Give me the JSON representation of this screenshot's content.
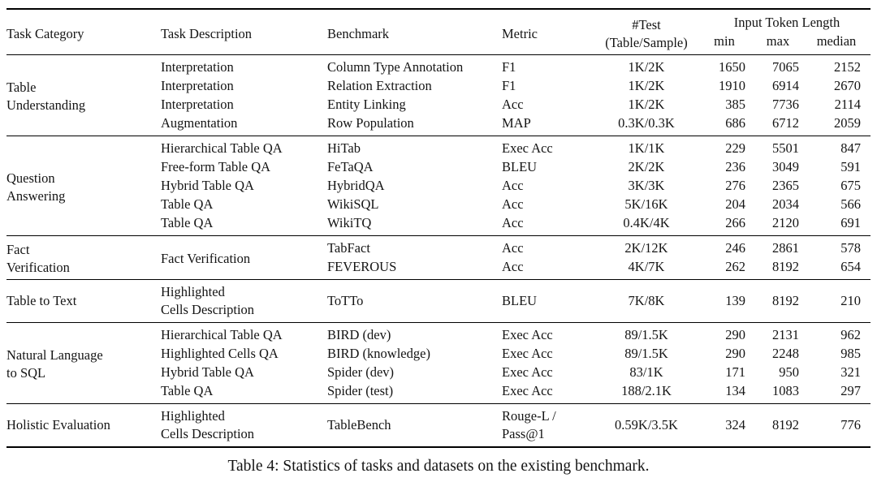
{
  "colors": {
    "background": "#ffffff",
    "text": "#141414",
    "rule": "#000000"
  },
  "caption": "Table 4: Statistics of tasks and datasets on the existing benchmark.",
  "table": {
    "header": {
      "task_category": "Task Category",
      "task_description": "Task Description",
      "benchmark": "Benchmark",
      "metric": "Metric",
      "test": "#Test\n(Table/Sample)",
      "input_token_length": "Input Token Length",
      "min": "min",
      "max": "max",
      "median": "median"
    },
    "sections": [
      {
        "id": "table-understanding",
        "category": "Table\nUnderstanding",
        "rows": [
          {
            "description": "Interpretation",
            "benchmark": "Column Type Annotation",
            "metric": "F1",
            "test": "1K/2K",
            "min": "1650",
            "max": "7065",
            "median": "2152"
          },
          {
            "description": "Interpretation",
            "benchmark": "Relation Extraction",
            "metric": "F1",
            "test": "1K/2K",
            "min": "1910",
            "max": "6914",
            "median": "2670"
          },
          {
            "description": "Interpretation",
            "benchmark": "Entity Linking",
            "metric": "Acc",
            "test": "1K/2K",
            "min": "385",
            "max": "7736",
            "median": "2114"
          },
          {
            "description": "Augmentation",
            "benchmark": "Row Population",
            "metric": "MAP",
            "test": "0.3K/0.3K",
            "min": "686",
            "max": "6712",
            "median": "2059"
          }
        ]
      },
      {
        "id": "question-answering",
        "category": "Question\nAnswering",
        "rows": [
          {
            "description": "Hierarchical Table QA",
            "benchmark": "HiTab",
            "metric": "Exec Acc",
            "test": "1K/1K",
            "min": "229",
            "max": "5501",
            "median": "847"
          },
          {
            "description": "Free-form Table QA",
            "benchmark": "FeTaQA",
            "metric": "BLEU",
            "test": "2K/2K",
            "min": "236",
            "max": "3049",
            "median": "591"
          },
          {
            "description": "Hybrid Table QA",
            "benchmark": "HybridQA",
            "metric": "Acc",
            "test": "3K/3K",
            "min": "276",
            "max": "2365",
            "median": "675"
          },
          {
            "description": "Table QA",
            "benchmark": "WikiSQL",
            "metric": "Acc",
            "test": "5K/16K",
            "min": "204",
            "max": "2034",
            "median": "566"
          },
          {
            "description": "Table QA",
            "benchmark": "WikiTQ",
            "metric": "Acc",
            "test": "0.4K/4K",
            "min": "266",
            "max": "2120",
            "median": "691"
          }
        ]
      },
      {
        "id": "fact-verification",
        "category": "Fact\nVerification",
        "shared_description": "Fact Verification",
        "rows": [
          {
            "benchmark": "TabFact",
            "metric": "Acc",
            "test": "2K/12K",
            "min": "246",
            "max": "2861",
            "median": "578"
          },
          {
            "benchmark": "FEVEROUS",
            "metric": "Acc",
            "test": "4K/7K",
            "min": "262",
            "max": "8192",
            "median": "654"
          }
        ]
      },
      {
        "id": "table-to-text",
        "category": "Table to Text",
        "rows": [
          {
            "description": "Highlighted\nCells Description",
            "benchmark": "ToTTo",
            "metric": "BLEU",
            "test": "7K/8K",
            "min": "139",
            "max": "8192",
            "median": "210"
          }
        ]
      },
      {
        "id": "natural-language-to-sql",
        "category": "Natural Language\nto SQL",
        "rows": [
          {
            "description": "Hierarchical Table QA",
            "benchmark": "BIRD (dev)",
            "metric": "Exec Acc",
            "test": "89/1.5K",
            "min": "290",
            "max": "2131",
            "median": "962"
          },
          {
            "description": "Highlighted Cells QA",
            "benchmark": "BIRD (knowledge)",
            "metric": "Exec Acc",
            "test": "89/1.5K",
            "min": "290",
            "max": "2248",
            "median": "985"
          },
          {
            "description": "Hybrid Table QA",
            "benchmark": "Spider (dev)",
            "metric": "Exec Acc",
            "test": "83/1K",
            "min": "171",
            "max": "950",
            "median": "321"
          },
          {
            "description": "Table QA",
            "benchmark": "Spider (test)",
            "metric": "Exec Acc",
            "test": "188/2.1K",
            "min": "134",
            "max": "1083",
            "median": "297"
          }
        ]
      },
      {
        "id": "holistic-evaluation",
        "category": "Holistic Evaluation",
        "rows": [
          {
            "description": "Highlighted\nCells Description",
            "benchmark": "TableBench",
            "metric": "Rouge-L /\nPass@1",
            "test": "0.59K/3.5K",
            "min": "324",
            "max": "8192",
            "median": "776"
          }
        ]
      }
    ]
  }
}
